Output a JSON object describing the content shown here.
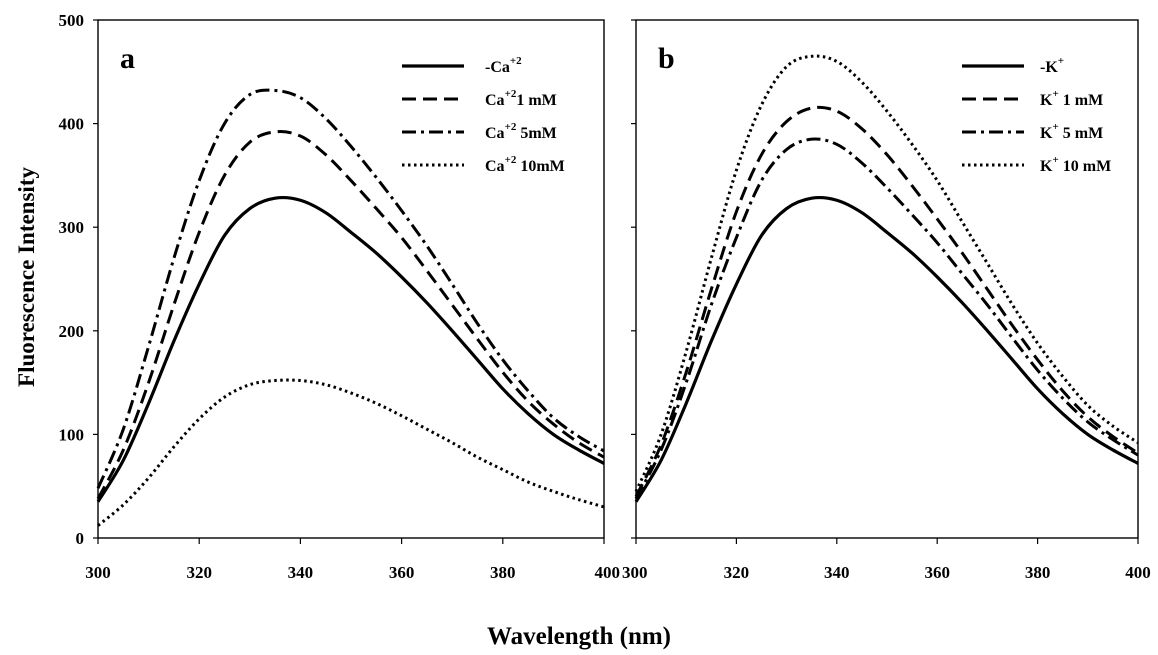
{
  "figure": {
    "ylabel": "Fluorescence Intensity",
    "xlabel": "Wavelength (nm)"
  },
  "chart_data": [
    {
      "type": "line",
      "panel_label": "a",
      "xlim": [
        300,
        400
      ],
      "ylim": [
        0,
        500
      ],
      "x_ticks": [
        "300",
        "320",
        "340",
        "360",
        "380",
        "400"
      ],
      "y_ticks": [
        "0",
        "100",
        "200",
        "300",
        "400",
        "500"
      ],
      "legend_position": "top-right",
      "x": [
        300,
        305,
        310,
        315,
        320,
        325,
        330,
        335,
        340,
        345,
        350,
        355,
        360,
        365,
        370,
        375,
        380,
        385,
        390,
        395,
        400
      ],
      "series": [
        {
          "name": "-Ca",
          "name_sup": "+2",
          "dash": "solid",
          "values": [
            35,
            75,
            130,
            190,
            245,
            292,
            318,
            328,
            326,
            314,
            295,
            275,
            252,
            227,
            200,
            172,
            144,
            120,
            100,
            85,
            72
          ]
        },
        {
          "name": "Ca",
          "name_sup": "+2",
          "name_suffix": "1 mM",
          "dash": "dashed",
          "values": [
            38,
            85,
            150,
            225,
            295,
            350,
            382,
            392,
            388,
            370,
            345,
            318,
            290,
            258,
            225,
            192,
            160,
            132,
            110,
            92,
            78
          ]
        },
        {
          "name": "Ca",
          "name_sup": "+2",
          "name_suffix": " 5mM",
          "dash": "dashdot",
          "values": [
            48,
            105,
            185,
            270,
            345,
            400,
            428,
            432,
            425,
            405,
            378,
            348,
            316,
            282,
            245,
            207,
            172,
            142,
            116,
            98,
            84
          ]
        },
        {
          "name": "Ca",
          "name_sup": "+2",
          "name_suffix": " 10mM",
          "dash": "dotted",
          "values": [
            12,
            32,
            58,
            88,
            115,
            136,
            148,
            152,
            152,
            148,
            140,
            130,
            118,
            105,
            92,
            78,
            66,
            54,
            45,
            37,
            30
          ]
        }
      ]
    },
    {
      "type": "line",
      "panel_label": "b",
      "xlim": [
        300,
        400
      ],
      "ylim": [
        0,
        500
      ],
      "x_ticks": [
        "300",
        "320",
        "340",
        "360",
        "380",
        "400"
      ],
      "y_ticks": [
        "0",
        "100",
        "200",
        "300",
        "400",
        "500"
      ],
      "legend_position": "top-right",
      "x": [
        300,
        305,
        310,
        315,
        320,
        325,
        330,
        335,
        340,
        345,
        350,
        355,
        360,
        365,
        370,
        375,
        380,
        385,
        390,
        395,
        400
      ],
      "series": [
        {
          "name": "-K",
          "name_sup": "+",
          "dash": "solid",
          "values": [
            35,
            75,
            130,
            190,
            245,
            292,
            318,
            328,
            326,
            314,
            295,
            275,
            252,
            227,
            200,
            172,
            144,
            120,
            100,
            85,
            72
          ]
        },
        {
          "name": "K",
          "name_sup": "+",
          "name_suffix": " 1 mM",
          "dash": "dashed",
          "values": [
            40,
            90,
            160,
            240,
            315,
            370,
            402,
            415,
            412,
            395,
            370,
            340,
            308,
            275,
            240,
            205,
            172,
            142,
            117,
            98,
            82
          ]
        },
        {
          "name": "K",
          "name_sup": "+",
          "name_suffix": " 5 mM",
          "dash": "dashdot",
          "values": [
            38,
            85,
            150,
            225,
            290,
            345,
            375,
            385,
            380,
            362,
            338,
            312,
            285,
            255,
            225,
            193,
            162,
            135,
            112,
            95,
            80
          ]
        },
        {
          "name": "K",
          "name_sup": "+",
          "name_suffix": " 10 mM",
          "dash": "dotted",
          "values": [
            45,
            100,
            180,
            270,
            355,
            418,
            455,
            465,
            460,
            440,
            412,
            380,
            345,
            305,
            265,
            225,
            188,
            156,
            128,
            108,
            92
          ]
        }
      ]
    }
  ]
}
